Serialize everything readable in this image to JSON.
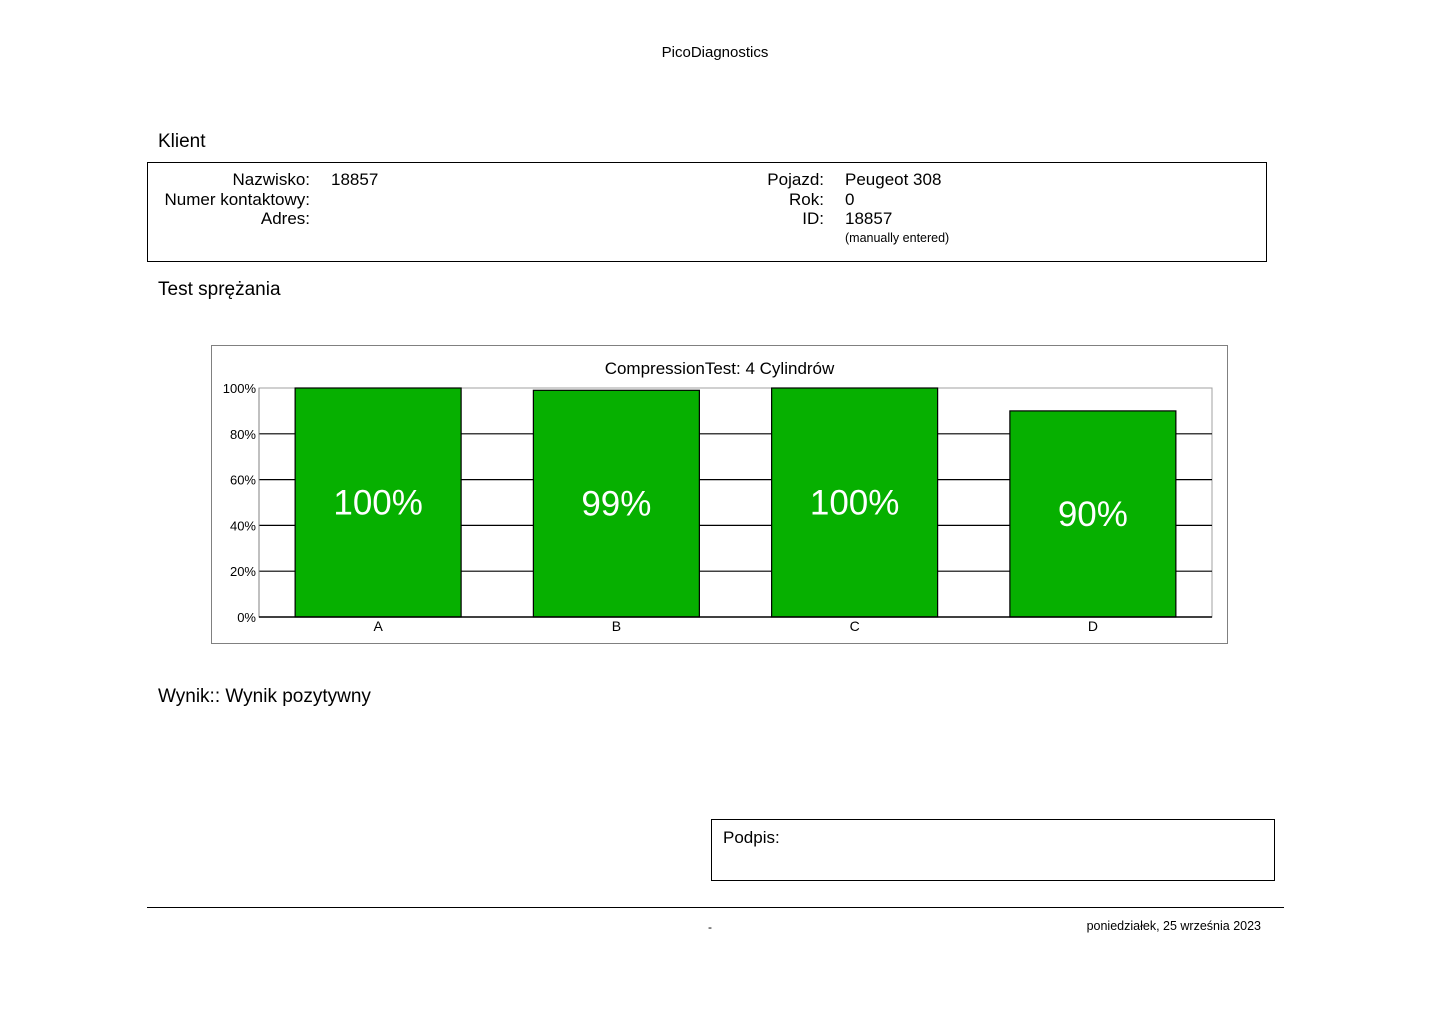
{
  "header": {
    "app_name": "PicoDiagnostics"
  },
  "client": {
    "section_title": "Klient",
    "labels": {
      "surname": "Nazwisko:",
      "contact": "Numer kontaktowy:",
      "address": "Adres:",
      "vehicle": "Pojazd:",
      "year": "Rok:",
      "id": "ID:"
    },
    "values": {
      "surname": "18857",
      "contact": "",
      "address": "",
      "vehicle": "Peugeot 308",
      "year": "0",
      "id": "18857",
      "id_note": "(manually entered)"
    }
  },
  "test": {
    "section_title": "Test sprężania"
  },
  "chart_data": {
    "type": "bar",
    "title": "CompressionTest: 4 Cylindrów",
    "categories": [
      "A",
      "B",
      "C",
      "D"
    ],
    "values": [
      100,
      99,
      100,
      90
    ],
    "value_labels": [
      "100%",
      "99%",
      "100%",
      "90%"
    ],
    "ylim": [
      0,
      100
    ],
    "yticks": [
      0,
      20,
      40,
      60,
      80,
      100
    ],
    "ytick_labels": [
      "0%",
      "20%",
      "40%",
      "60%",
      "80%",
      "100%"
    ],
    "xlabel": "",
    "ylabel": "",
    "grid": true,
    "bar_color": "#06b000",
    "label_color": "#ffffff"
  },
  "result": {
    "text": "Wynik:: Wynik pozytywny"
  },
  "signature": {
    "label": "Podpis:"
  },
  "footer": {
    "center_text": "-",
    "date": "poniedziałek, 25 września 2023"
  }
}
